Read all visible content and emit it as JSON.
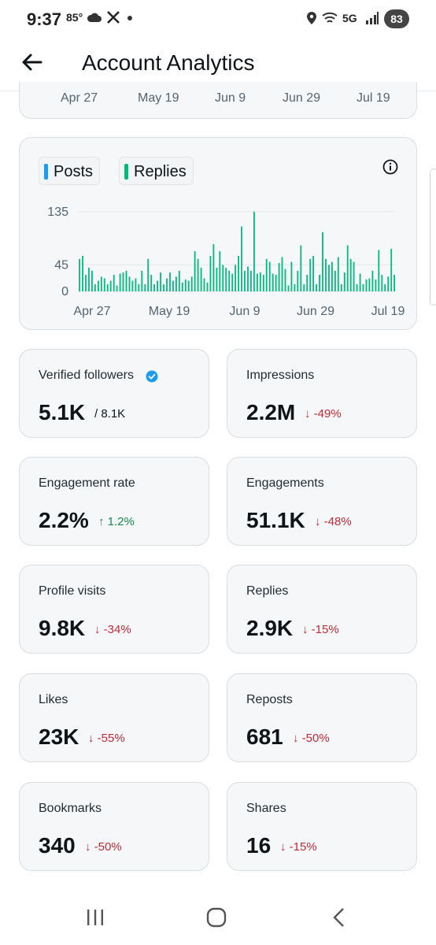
{
  "status": {
    "time": "9:37",
    "temp": "85°",
    "network": "5G",
    "battery": "83"
  },
  "header": {
    "title": "Account Analytics"
  },
  "top_axis": [
    "Apr 27",
    "May 19",
    "Jun 9",
    "Jun 29",
    "Jul 19"
  ],
  "legend": {
    "posts": "Posts",
    "replies": "Replies",
    "posts_color": "#1d9bf0",
    "replies_color": "#00ba7c"
  },
  "chart_data": {
    "type": "bar",
    "series": [
      {
        "name": "Replies",
        "color": "#00ba7c",
        "values": [
          55,
          60,
          28,
          40,
          35,
          12,
          18,
          25,
          22,
          12,
          18,
          28,
          10,
          30,
          32,
          35,
          25,
          18,
          22,
          12,
          35,
          12,
          55,
          28,
          12,
          18,
          32,
          12,
          22,
          32,
          18,
          25,
          35,
          15,
          20,
          18,
          25,
          68,
          55,
          40,
          22,
          15,
          60,
          80,
          40,
          68,
          45,
          40,
          35,
          30,
          45,
          60,
          110,
          35,
          42,
          35,
          135,
          30,
          32,
          28,
          55,
          50,
          30,
          28,
          48,
          58,
          38,
          10,
          50,
          12,
          35,
          78,
          12,
          28,
          55,
          60,
          12,
          28,
          100,
          55,
          45,
          50,
          35,
          58,
          12,
          32,
          78,
          55,
          50,
          12,
          30,
          12,
          20,
          22,
          35,
          20,
          70,
          28,
          12,
          25,
          72,
          28
        ],
        "values_note": ""
      },
      {
        "name": "Posts",
        "color": "#1d9bf0",
        "values": []
      }
    ],
    "x_ticks": [
      "Apr 27",
      "May 19",
      "Jun 9",
      "Jun 29",
      "Jul 19"
    ],
    "y_ticks": [
      "135",
      "45",
      "0"
    ],
    "ylim": [
      0,
      140
    ],
    "grid": true
  },
  "stats": [
    {
      "label": "Verified followers",
      "value": "5.1K",
      "extra": "/ 8.1K",
      "trend": "neutral"
    },
    {
      "label": "Impressions",
      "value": "2.2M",
      "extra": "↓ -49%",
      "trend": "down"
    },
    {
      "label": "Engagement rate",
      "value": "2.2%",
      "extra": "↑ 1.2%",
      "trend": "up"
    },
    {
      "label": "Engagements",
      "value": "51.1K",
      "extra": "↓ -48%",
      "trend": "down"
    },
    {
      "label": "Profile visits",
      "value": "9.8K",
      "extra": "↓ -34%",
      "trend": "down"
    },
    {
      "label": "Replies",
      "value": "2.9K",
      "extra": "↓ -15%",
      "trend": "down"
    },
    {
      "label": "Likes",
      "value": "23K",
      "extra": "↓ -55%",
      "trend": "down"
    },
    {
      "label": "Reposts",
      "value": "681",
      "extra": "↓ -50%",
      "trend": "down"
    },
    {
      "label": "Bookmarks",
      "value": "340",
      "extra": "↓ -50%",
      "trend": "down"
    },
    {
      "label": "Shares",
      "value": "16",
      "extra": "↓ -15%",
      "trend": "down"
    }
  ],
  "colors": {
    "verified": "#1d9bf0",
    "down": "#c22a38",
    "up": "#178a4a"
  }
}
